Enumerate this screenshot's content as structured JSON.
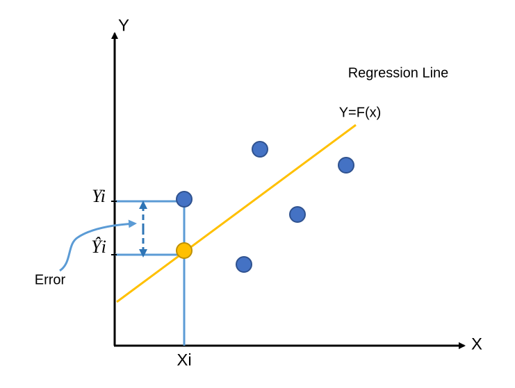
{
  "axes": {
    "y_label": "Y",
    "x_label": "X"
  },
  "regression": {
    "title": "Regression Line",
    "equation": "Y=F(x)"
  },
  "markers": {
    "observed": "Yi",
    "predicted": "Ŷi",
    "x_point": "Xi",
    "error": "Error"
  }
}
